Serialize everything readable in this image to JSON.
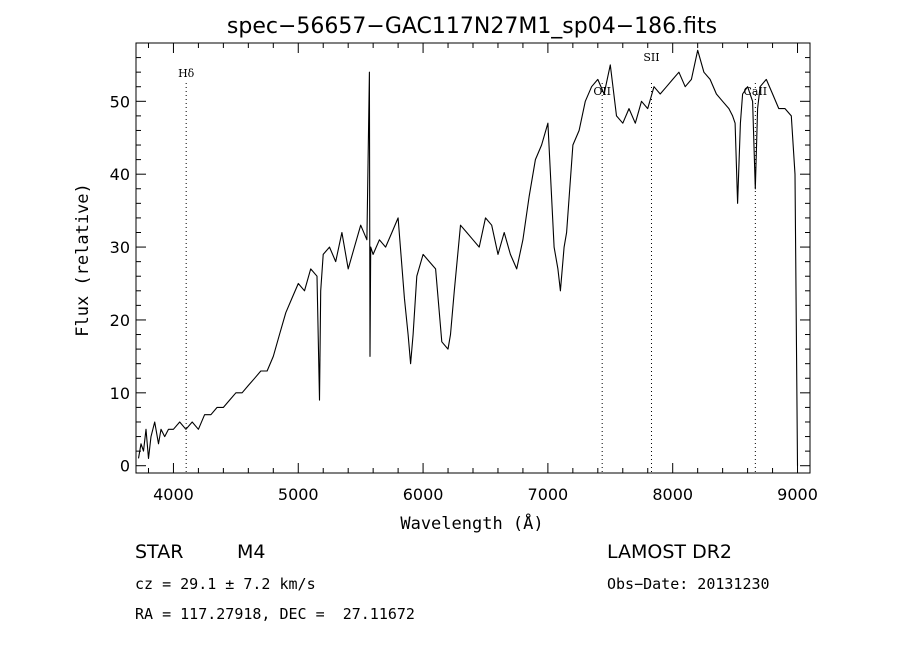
{
  "chart_data": {
    "type": "line",
    "title": "spec−56657−GAC117N27M1_sp04−186.fits",
    "xlabel": "Wavelength (Å)",
    "ylabel": "Flux (relative)",
    "xlim": [
      3700,
      9100
    ],
    "ylim": [
      -1,
      58
    ],
    "xticks": [
      4000,
      5000,
      6000,
      7000,
      8000,
      9000
    ],
    "yticks": [
      0,
      10,
      20,
      30,
      40,
      50
    ],
    "grid": false,
    "series": [
      {
        "x": [
          3720,
          3740,
          3760,
          3780,
          3800,
          3820,
          3850,
          3880,
          3900,
          3930,
          3960,
          4000,
          4050,
          4100,
          4150,
          4200,
          4250,
          4300,
          4350,
          4400,
          4450,
          4500,
          4550,
          4600,
          4650,
          4700,
          4750,
          4800,
          4850,
          4900,
          4950,
          5000,
          5050,
          5100,
          5150,
          5170,
          5180,
          5200,
          5250,
          5300,
          5350,
          5400,
          5450,
          5500,
          5550,
          5570,
          5575,
          5580,
          5600,
          5650,
          5700,
          5750,
          5800,
          5850,
          5880,
          5900,
          5920,
          5950,
          6000,
          6050,
          6100,
          6150,
          6200,
          6220,
          6250,
          6300,
          6350,
          6400,
          6450,
          6500,
          6550,
          6600,
          6650,
          6700,
          6750,
          6800,
          6850,
          6900,
          6950,
          7000,
          7050,
          7080,
          7100,
          7130,
          7150,
          7200,
          7250,
          7300,
          7350,
          7400,
          7450,
          7500,
          7550,
          7600,
          7650,
          7700,
          7750,
          7800,
          7850,
          7900,
          7950,
          8000,
          8050,
          8100,
          8150,
          8200,
          8250,
          8300,
          8350,
          8400,
          8450,
          8480,
          8500,
          8520,
          8542,
          8560,
          8600,
          8640,
          8662,
          8680,
          8700,
          8750,
          8800,
          8850,
          8900,
          8950,
          8980,
          9000
        ],
        "y": [
          1,
          3,
          2,
          5,
          1,
          4,
          6,
          3,
          5,
          4,
          5,
          5,
          6,
          5,
          6,
          5,
          7,
          7,
          8,
          8,
          9,
          10,
          10,
          11,
          12,
          13,
          13,
          15,
          18,
          21,
          23,
          25,
          24,
          27,
          26,
          9,
          24,
          29,
          30,
          28,
          32,
          27,
          30,
          33,
          31,
          54,
          15,
          30,
          29,
          31,
          30,
          32,
          34,
          23,
          18,
          14,
          18,
          26,
          29,
          28,
          27,
          17,
          16,
          18,
          24,
          33,
          32,
          31,
          30,
          34,
          33,
          29,
          32,
          29,
          27,
          31,
          37,
          42,
          44,
          47,
          30,
          27,
          24,
          30,
          32,
          44,
          46,
          50,
          52,
          53,
          51,
          55,
          48,
          47,
          49,
          47,
          50,
          49,
          52,
          51,
          52,
          53,
          54,
          52,
          53,
          57,
          54,
          53,
          51,
          50,
          49,
          48,
          47,
          36,
          47,
          51,
          52,
          50,
          38,
          49,
          52,
          53,
          51,
          49,
          49,
          48,
          40,
          0
        ]
      }
    ],
    "annotations": [
      {
        "label": "Hδ",
        "x": 4102
      },
      {
        "label": "OII",
        "x": 7435
      },
      {
        "label": "SII",
        "x": 7830
      },
      {
        "label": "CaII",
        "x": 8662
      }
    ]
  },
  "info": {
    "object_class": "STAR",
    "subclass": "M4",
    "survey": "LAMOST DR2",
    "velocity": "cz = 29.1 ± 7.2 km/s",
    "obs_date": "Obs−Date: 20131230",
    "coords": "RA = 117.27918, DEC =  27.11672"
  }
}
